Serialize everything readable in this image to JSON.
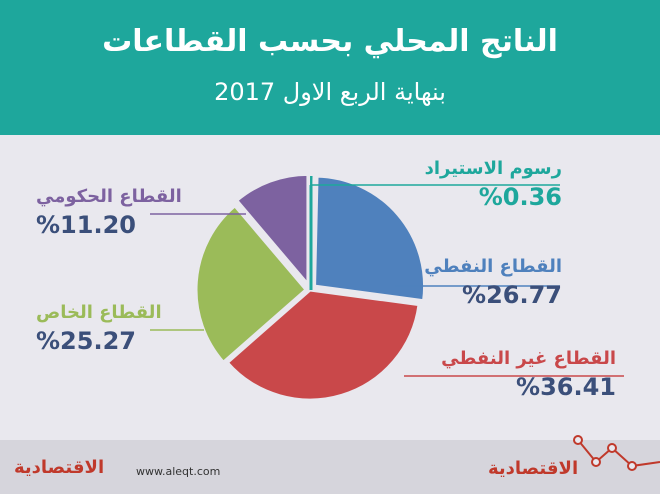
{
  "header": {
    "title": "الناتج المحلي بحسب القطاعات",
    "subtitle": "بنهاية الربع الاول 2017"
  },
  "chart_data": {
    "type": "pie",
    "title": "الناتج المحلي بحسب القطاعات",
    "subtitle": "بنهاية الربع الاول 2017",
    "slices": [
      {
        "name": "رسوم الاستيراد",
        "value": 0.36,
        "label": "%0.36",
        "color": "#1ea79c"
      },
      {
        "name": "القطاع النفطي",
        "value": 26.77,
        "label": "%26.77",
        "color": "#4f81bd"
      },
      {
        "name": "القطاع غير النفطي",
        "value": 36.41,
        "label": "%36.41",
        "color": "#c9484a"
      },
      {
        "name": "القطاع الخاص",
        "value": 25.27,
        "label": "%25.27",
        "color": "#9bbb59"
      },
      {
        "name": "القطاع الحكومي",
        "value": 11.2,
        "label": "%11.20",
        "color": "#7d62a0"
      }
    ]
  },
  "footer": {
    "website": "www.aleqt.com",
    "brand": "الاقتصادية"
  }
}
